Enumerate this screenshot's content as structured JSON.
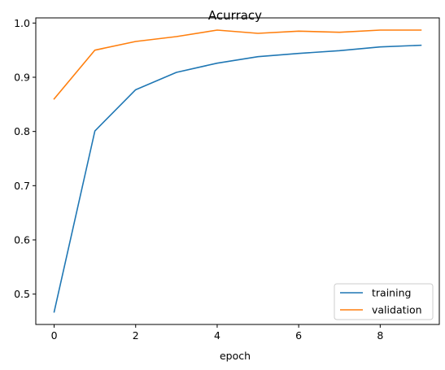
{
  "chart_data": {
    "type": "line",
    "title": "Acurracy",
    "xlabel": "epoch",
    "ylabel": "",
    "x": [
      0,
      1,
      2,
      3,
      4,
      5,
      6,
      7,
      8,
      9
    ],
    "xlim": [
      -0.45,
      9.45
    ],
    "ylim": [
      0.444,
      1.0095
    ],
    "xticks": [
      0,
      2,
      4,
      6,
      8
    ],
    "yticks": [
      0.5,
      0.6,
      0.7,
      0.8,
      0.9,
      1.0
    ],
    "xtick_labels": [
      "0",
      "2",
      "4",
      "6",
      "8"
    ],
    "ytick_labels": [
      "0.5",
      "0.6",
      "0.7",
      "0.8",
      "0.9",
      "1.0"
    ],
    "grid": false,
    "legend_position": "lower-right",
    "series": [
      {
        "name": "training",
        "color": "#1f77b4",
        "values": [
          0.467,
          0.801,
          0.877,
          0.909,
          0.926,
          0.938,
          0.944,
          0.949,
          0.956,
          0.959
        ]
      },
      {
        "name": "validation",
        "color": "#ff7f0e",
        "values": [
          0.86,
          0.95,
          0.966,
          0.975,
          0.987,
          0.981,
          0.985,
          0.983,
          0.987,
          0.987
        ]
      }
    ]
  }
}
